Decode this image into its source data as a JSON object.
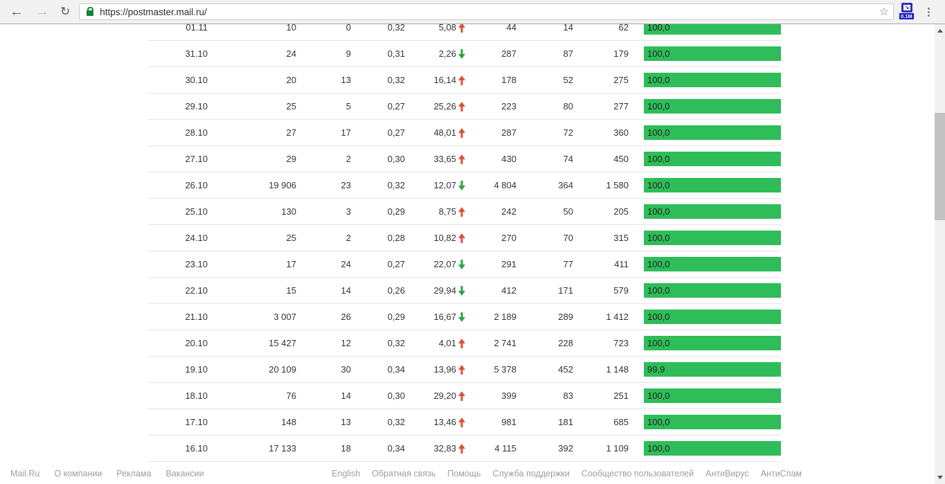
{
  "browser": {
    "url": "https://postmaster.mail.ru/",
    "extension_badge": "0.1M",
    "icons": {
      "back": "←",
      "forward": "→",
      "reload": "↻",
      "star": "☆",
      "menu": "⋮",
      "ext_arrow": "↘"
    }
  },
  "table": {
    "rows": [
      {
        "date": "01.11",
        "v1": "10",
        "v2": "0",
        "v3": "0,32",
        "pct": "5,08",
        "trend": "up",
        "v4": "44",
        "v5": "14",
        "v6": "62",
        "bar_label": "100,0",
        "bar_pct": 100
      },
      {
        "date": "31.10",
        "v1": "24",
        "v2": "9",
        "v3": "0,31",
        "pct": "2,26",
        "trend": "down",
        "v4": "287",
        "v5": "87",
        "v6": "179",
        "bar_label": "100,0",
        "bar_pct": 100
      },
      {
        "date": "30.10",
        "v1": "20",
        "v2": "13",
        "v3": "0,32",
        "pct": "16,14",
        "trend": "up",
        "v4": "178",
        "v5": "52",
        "v6": "275",
        "bar_label": "100,0",
        "bar_pct": 100
      },
      {
        "date": "29.10",
        "v1": "25",
        "v2": "5",
        "v3": "0,27",
        "pct": "25,26",
        "trend": "up",
        "v4": "223",
        "v5": "80",
        "v6": "277",
        "bar_label": "100,0",
        "bar_pct": 100
      },
      {
        "date": "28.10",
        "v1": "27",
        "v2": "17",
        "v3": "0,27",
        "pct": "48,01",
        "trend": "up",
        "v4": "287",
        "v5": "72",
        "v6": "360",
        "bar_label": "100,0",
        "bar_pct": 100
      },
      {
        "date": "27.10",
        "v1": "29",
        "v2": "2",
        "v3": "0,30",
        "pct": "33,65",
        "trend": "up",
        "v4": "430",
        "v5": "74",
        "v6": "450",
        "bar_label": "100,0",
        "bar_pct": 100
      },
      {
        "date": "26.10",
        "v1": "19 906",
        "v2": "23",
        "v3": "0,32",
        "pct": "12,07",
        "trend": "down",
        "v4": "4 804",
        "v5": "364",
        "v6": "1 580",
        "bar_label": "100,0",
        "bar_pct": 100
      },
      {
        "date": "25.10",
        "v1": "130",
        "v2": "3",
        "v3": "0,29",
        "pct": "8,75",
        "trend": "up",
        "v4": "242",
        "v5": "50",
        "v6": "205",
        "bar_label": "100,0",
        "bar_pct": 100
      },
      {
        "date": "24.10",
        "v1": "25",
        "v2": "2",
        "v3": "0,28",
        "pct": "10,82",
        "trend": "up",
        "v4": "270",
        "v5": "70",
        "v6": "315",
        "bar_label": "100,0",
        "bar_pct": 100
      },
      {
        "date": "23.10",
        "v1": "17",
        "v2": "24",
        "v3": "0,27",
        "pct": "22,07",
        "trend": "down",
        "v4": "291",
        "v5": "77",
        "v6": "411",
        "bar_label": "100,0",
        "bar_pct": 100
      },
      {
        "date": "22.10",
        "v1": "15",
        "v2": "14",
        "v3": "0,26",
        "pct": "29,94",
        "trend": "down",
        "v4": "412",
        "v5": "171",
        "v6": "579",
        "bar_label": "100,0",
        "bar_pct": 100
      },
      {
        "date": "21.10",
        "v1": "3 007",
        "v2": "26",
        "v3": "0,29",
        "pct": "16,67",
        "trend": "down",
        "v4": "2 189",
        "v5": "289",
        "v6": "1 412",
        "bar_label": "100,0",
        "bar_pct": 100
      },
      {
        "date": "20.10",
        "v1": "15 427",
        "v2": "12",
        "v3": "0,32",
        "pct": "4,01",
        "trend": "up",
        "v4": "2 741",
        "v5": "228",
        "v6": "723",
        "bar_label": "100,0",
        "bar_pct": 100
      },
      {
        "date": "19.10",
        "v1": "20 109",
        "v2": "30",
        "v3": "0,34",
        "pct": "13,96",
        "trend": "up",
        "v4": "5 378",
        "v5": "452",
        "v6": "1 148",
        "bar_label": "99,9",
        "bar_pct": 99.9
      },
      {
        "date": "18.10",
        "v1": "76",
        "v2": "14",
        "v3": "0,30",
        "pct": "29,20",
        "trend": "up",
        "v4": "399",
        "v5": "83",
        "v6": "251",
        "bar_label": "100,0",
        "bar_pct": 100
      },
      {
        "date": "17.10",
        "v1": "148",
        "v2": "13",
        "v3": "0,32",
        "pct": "13,46",
        "trend": "up",
        "v4": "981",
        "v5": "181",
        "v6": "685",
        "bar_label": "100,0",
        "bar_pct": 100
      },
      {
        "date": "16.10",
        "v1": "17 133",
        "v2": "18",
        "v3": "0,34",
        "pct": "32,83",
        "trend": "up",
        "v4": "4 115",
        "v5": "392",
        "v6": "1 109",
        "bar_label": "100,0",
        "bar_pct": 100
      }
    ]
  },
  "footer": {
    "left_links": [
      "Mail.Ru",
      "О компании",
      "Реклама",
      "Вакансии"
    ],
    "right_links": [
      "English",
      "Обратная связь",
      "Помощь",
      "Служба поддержки",
      "Сообщество пользователей",
      "АнтиВирус",
      "АнтиСпам"
    ]
  },
  "colors": {
    "bar_green": "#2ebd59",
    "trend_up": "#e04f35",
    "trend_down": "#27a843",
    "badge_blue": "#1d18cf",
    "lock_green": "#188038"
  }
}
